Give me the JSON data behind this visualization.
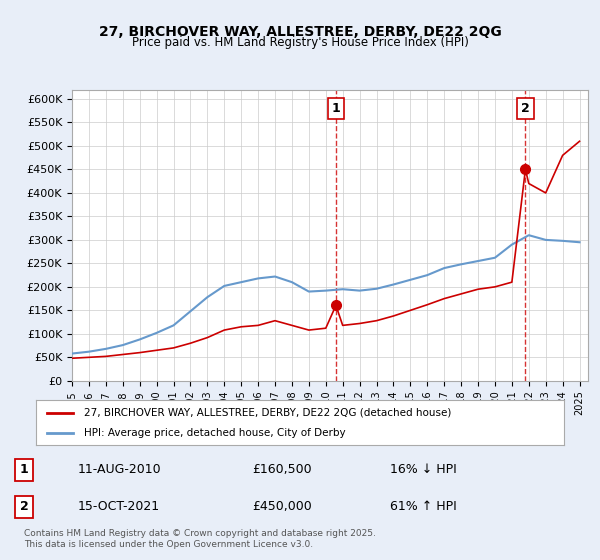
{
  "title1": "27, BIRCHOVER WAY, ALLESTREE, DERBY, DE22 2QG",
  "title2": "Price paid vs. HM Land Registry's House Price Index (HPI)",
  "legend_line1": "27, BIRCHOVER WAY, ALLESTREE, DERBY, DE22 2QG (detached house)",
  "legend_line2": "HPI: Average price, detached house, City of Derby",
  "annotation1_label": "1",
  "annotation1_date": "11-AUG-2010",
  "annotation1_price": "£160,500",
  "annotation1_hpi": "16% ↓ HPI",
  "annotation1_year": 2010.6,
  "annotation1_value": 160500,
  "annotation2_label": "2",
  "annotation2_date": "15-OCT-2021",
  "annotation2_price": "£450,000",
  "annotation2_hpi": "61% ↑ HPI",
  "annotation2_year": 2021.8,
  "annotation2_value": 450000,
  "footer": "Contains HM Land Registry data © Crown copyright and database right 2025.\nThis data is licensed under the Open Government Licence v3.0.",
  "ylim": [
    0,
    620000
  ],
  "xlim_start": 1995,
  "xlim_end": 2025.5,
  "red_color": "#cc0000",
  "blue_color": "#6699cc",
  "bg_color": "#e8eef8",
  "plot_bg": "#ffffff",
  "grid_color": "#cccccc",
  "hpi_x": [
    1995,
    1996,
    1997,
    1998,
    1999,
    2000,
    2001,
    2002,
    2003,
    2004,
    2005,
    2006,
    2007,
    2008,
    2009,
    2010,
    2011,
    2012,
    2013,
    2014,
    2015,
    2016,
    2017,
    2018,
    2019,
    2020,
    2021,
    2022,
    2023,
    2024,
    2025
  ],
  "hpi_y": [
    58000,
    62000,
    68000,
    76000,
    88000,
    102000,
    118000,
    148000,
    178000,
    202000,
    210000,
    218000,
    222000,
    210000,
    190000,
    192000,
    195000,
    192000,
    196000,
    205000,
    215000,
    225000,
    240000,
    248000,
    255000,
    262000,
    290000,
    310000,
    300000,
    298000,
    295000
  ],
  "red_x": [
    1995,
    1996,
    1997,
    1998,
    1999,
    2000,
    2001,
    2002,
    2003,
    2004,
    2005,
    2006,
    2007,
    2008,
    2009,
    2010,
    2010.6,
    2011,
    2012,
    2013,
    2014,
    2015,
    2016,
    2017,
    2018,
    2019,
    2020,
    2021,
    2021.8,
    2022,
    2023,
    2024,
    2025
  ],
  "red_y": [
    48000,
    50000,
    52000,
    56000,
    60000,
    65000,
    70000,
    80000,
    92000,
    108000,
    115000,
    118000,
    128000,
    118000,
    108000,
    112000,
    160500,
    118000,
    122000,
    128000,
    138000,
    150000,
    162000,
    175000,
    185000,
    195000,
    200000,
    210000,
    450000,
    420000,
    400000,
    480000,
    510000
  ],
  "xtick_years": [
    1995,
    1996,
    1997,
    1998,
    1999,
    2000,
    2001,
    2002,
    2003,
    2004,
    2005,
    2006,
    2007,
    2008,
    2009,
    2010,
    2011,
    2012,
    2013,
    2014,
    2015,
    2016,
    2017,
    2018,
    2019,
    2020,
    2021,
    2022,
    2023,
    2024,
    2025
  ]
}
